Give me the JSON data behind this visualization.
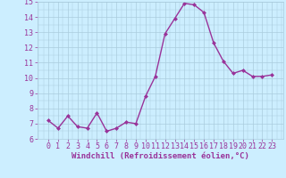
{
  "x": [
    0,
    1,
    2,
    3,
    4,
    5,
    6,
    7,
    8,
    9,
    10,
    11,
    12,
    13,
    14,
    15,
    16,
    17,
    18,
    19,
    20,
    21,
    22,
    23
  ],
  "y": [
    7.2,
    6.7,
    7.5,
    6.8,
    6.7,
    7.7,
    6.5,
    6.7,
    7.1,
    7.0,
    8.8,
    10.1,
    12.9,
    13.9,
    14.9,
    14.8,
    14.3,
    12.3,
    11.1,
    10.3,
    10.5,
    10.1,
    10.1,
    10.2
  ],
  "line_color": "#993399",
  "marker": "D",
  "marker_size": 2.0,
  "linewidth": 1.0,
  "bg_color": "#cceeff",
  "grid_color": "#aaccdd",
  "xlabel": "Windchill (Refroidissement éolien,°C)",
  "xlabel_color": "#993399",
  "xlabel_fontsize": 6.5,
  "tick_color": "#993399",
  "tick_fontsize": 6.0,
  "ylim": [
    6,
    15
  ],
  "yticks": [
    6,
    7,
    8,
    9,
    10,
    11,
    12,
    13,
    14,
    15
  ],
  "xticks": [
    0,
    1,
    2,
    3,
    4,
    5,
    6,
    7,
    8,
    9,
    10,
    11,
    12,
    13,
    14,
    15,
    16,
    17,
    18,
    19,
    20,
    21,
    22,
    23
  ]
}
